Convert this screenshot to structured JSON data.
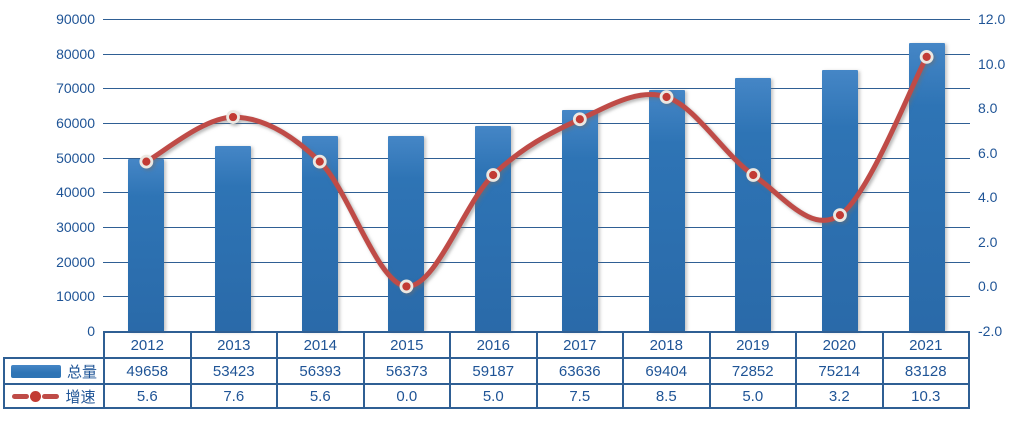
{
  "chart_data": {
    "type": "combo-bar-line",
    "title": "",
    "categories": [
      "2012",
      "2013",
      "2014",
      "2015",
      "2016",
      "2017",
      "2018",
      "2019",
      "2020",
      "2021"
    ],
    "series": [
      {
        "name": "总量",
        "type": "bar",
        "axis": "left",
        "values": [
          49658,
          53423,
          56393,
          56373,
          59187,
          63636,
          69404,
          72852,
          75214,
          83128
        ]
      },
      {
        "name": "增速",
        "type": "line",
        "axis": "right",
        "smoothed": true,
        "values": [
          5.6,
          7.6,
          5.6,
          0.0,
          5.0,
          7.5,
          8.5,
          5.0,
          3.2,
          10.3
        ]
      }
    ],
    "left_axis": {
      "min": 0,
      "max": 90000,
      "step": 10000,
      "ticks": [
        "90000",
        "80000",
        "70000",
        "60000",
        "50000",
        "40000",
        "30000",
        "20000",
        "10000",
        "0"
      ]
    },
    "right_axis": {
      "min": -2.0,
      "max": 12.0,
      "step": 2.0,
      "ticks": [
        "12.0",
        "10.0",
        "8.0",
        "6.0",
        "4.0",
        "2.0",
        "0.0",
        "-2.0"
      ]
    },
    "grid": true,
    "legend_position": "table-left"
  },
  "table": {
    "years": [
      "2012",
      "2013",
      "2014",
      "2015",
      "2016",
      "2017",
      "2018",
      "2019",
      "2020",
      "2021"
    ],
    "rows": [
      {
        "legend": "总量",
        "swatch": "bar-swatch",
        "cells": [
          "49658",
          "53423",
          "56393",
          "56373",
          "59187",
          "63636",
          "69404",
          "72852",
          "75214",
          "83128"
        ]
      },
      {
        "legend": "增速",
        "swatch": "line-dot-swatch",
        "cells": [
          "5.6",
          "7.6",
          "5.6",
          "0.0",
          "5.0",
          "7.5",
          "8.5",
          "5.0",
          "3.2",
          "10.3"
        ]
      }
    ]
  },
  "colors": {
    "bar": "#2E74B5",
    "line": "#BF4B47",
    "marker": "#C23B34",
    "marker_ring": "#EBE8E2",
    "grid": "#2F5F94",
    "text": "#1F5496",
    "border": "#2F5F94"
  }
}
